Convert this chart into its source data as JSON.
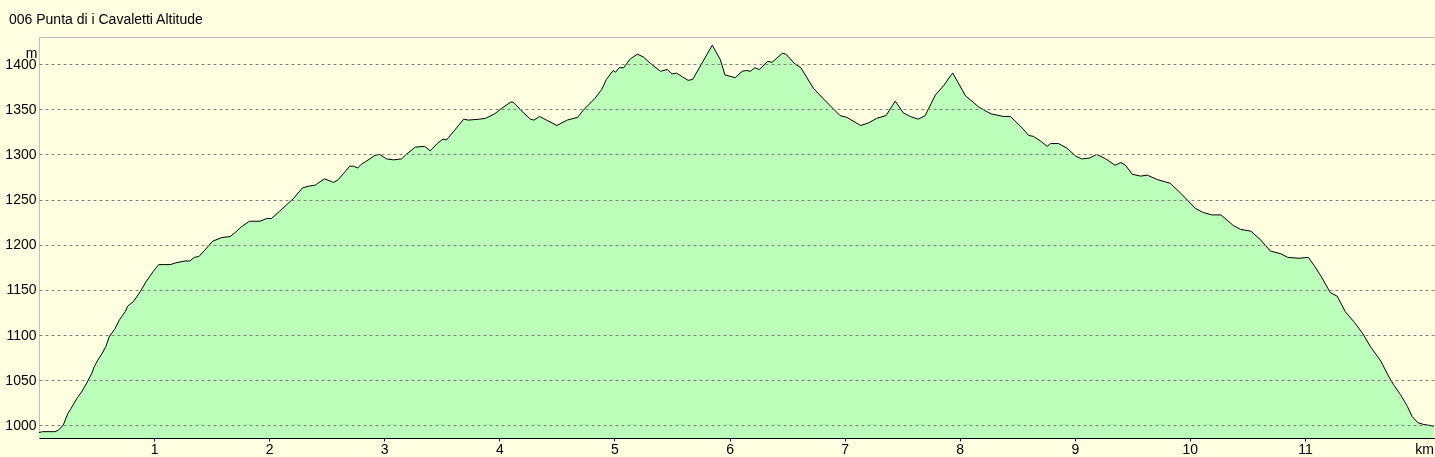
{
  "chart_data": {
    "type": "area",
    "title": "006 Punta di i Cavaletti Altitude",
    "xlabel": "km",
    "ylabel": "m",
    "x": [
      0.0,
      0.03,
      0.14,
      0.17,
      0.21,
      0.25,
      0.28,
      0.33,
      0.37,
      0.42,
      0.46,
      0.48,
      0.51,
      0.55,
      0.58,
      0.61,
      0.66,
      0.7,
      0.75,
      0.77,
      0.82,
      0.88,
      0.93,
      0.99,
      1.04,
      1.08,
      1.14,
      1.19,
      1.27,
      1.31,
      1.35,
      1.39,
      1.44,
      1.51,
      1.59,
      1.66,
      1.7,
      1.76,
      1.83,
      1.92,
      1.98,
      2.02,
      2.09,
      2.15,
      2.21,
      2.29,
      2.35,
      2.4,
      2.48,
      2.56,
      2.6,
      2.66,
      2.7,
      2.73,
      2.77,
      2.8,
      2.85,
      2.92,
      2.96,
      3.02,
      3.08,
      3.15,
      3.19,
      3.27,
      3.35,
      3.4,
      3.46,
      3.51,
      3.54,
      3.6,
      3.69,
      3.73,
      3.83,
      3.88,
      3.96,
      4.02,
      4.1,
      4.12,
      4.21,
      4.27,
      4.3,
      4.35,
      4.41,
      4.5,
      4.59,
      4.68,
      4.73,
      4.83,
      4.89,
      4.93,
      4.99,
      5.01,
      5.04,
      5.08,
      5.14,
      5.2,
      5.25,
      5.32,
      5.4,
      5.46,
      5.5,
      5.54,
      5.59,
      5.64,
      5.68,
      5.77,
      5.85,
      5.92,
      5.96,
      6.05,
      6.11,
      6.15,
      6.18,
      6.22,
      6.26,
      6.33,
      6.37,
      6.46,
      6.49,
      6.57,
      6.62,
      6.73,
      6.82,
      6.89,
      6.96,
      7.02,
      7.14,
      7.21,
      7.28,
      7.36,
      7.44,
      7.51,
      7.57,
      7.64,
      7.7,
      7.79,
      7.86,
      7.92,
      7.94,
      8.05,
      8.17,
      8.27,
      8.38,
      8.44,
      8.53,
      8.6,
      8.64,
      8.7,
      8.76,
      8.79,
      8.86,
      8.93,
      9.01,
      9.06,
      9.13,
      9.19,
      9.27,
      9.35,
      9.4,
      9.44,
      9.5,
      9.57,
      9.63,
      9.72,
      9.83,
      9.92,
      10.05,
      10.11,
      10.19,
      10.27,
      10.38,
      10.44,
      10.53,
      10.61,
      10.7,
      10.79,
      10.85,
      10.95,
      11.03,
      11.08,
      11.14,
      11.22,
      11.28,
      11.35,
      11.43,
      11.5,
      11.57,
      11.66,
      11.72,
      11.77,
      11.83,
      11.89,
      11.93,
      11.98,
      12.03,
      12.08,
      12.12
    ],
    "series": [
      {
        "color": "#bbffbb",
        "values": [
          992,
          993,
          993,
          995,
          1000,
          1013,
          1019,
          1030,
          1037,
          1048,
          1058,
          1065,
          1072,
          1080,
          1087,
          1098,
          1107,
          1117,
          1126,
          1132,
          1137,
          1148,
          1159,
          1170,
          1178,
          1178,
          1178,
          1180,
          1182,
          1182,
          1186,
          1187,
          1194,
          1204,
          1208,
          1209,
          1213,
          1220,
          1226,
          1226,
          1229,
          1229,
          1237,
          1244,
          1251,
          1263,
          1265,
          1266,
          1273,
          1269,
          1272,
          1281,
          1287,
          1287,
          1285,
          1289,
          1293,
          1299,
          1300,
          1295,
          1294,
          1295,
          1300,
          1308,
          1309,
          1304,
          1312,
          1317,
          1316,
          1325,
          1339,
          1338,
          1339,
          1340,
          1345,
          1351,
          1358,
          1358,
          1346,
          1339,
          1338,
          1342,
          1338,
          1332,
          1338,
          1341,
          1349,
          1362,
          1372,
          1383,
          1393,
          1391,
          1396,
          1396,
          1406,
          1411,
          1408,
          1400,
          1392,
          1394,
          1389,
          1390,
          1386,
          1382,
          1383,
          1403,
          1421,
          1405,
          1388,
          1385,
          1392,
          1393,
          1392,
          1396,
          1394,
          1403,
          1402,
          1412,
          1411,
          1400,
          1396,
          1373,
          1361,
          1352,
          1343,
          1341,
          1332,
          1335,
          1340,
          1343,
          1359,
          1346,
          1342,
          1339,
          1343,
          1366,
          1376,
          1387,
          1390,
          1365,
          1352,
          1345,
          1342,
          1342,
          1331,
          1321,
          1320,
          1315,
          1309,
          1312,
          1312,
          1307,
          1298,
          1295,
          1296,
          1300,
          1295,
          1288,
          1291,
          1288,
          1278,
          1276,
          1277,
          1272,
          1268,
          1257,
          1240,
          1236,
          1233,
          1233,
          1221,
          1217,
          1215,
          1206,
          1193,
          1190,
          1186,
          1185,
          1186,
          1177,
          1165,
          1147,
          1143,
          1126,
          1114,
          1102,
          1087,
          1071,
          1056,
          1045,
          1034,
          1021,
          1010,
          1003,
          1001,
          1000,
          999
        ]
      }
    ],
    "xlim": [
      0,
      12.13
    ],
    "ylim": [
      986,
      1430
    ],
    "xticks": [
      1,
      2,
      3,
      4,
      5,
      6,
      7,
      8,
      9,
      10,
      11
    ],
    "yticks": [
      1000,
      1050,
      1100,
      1150,
      1200,
      1250,
      1300,
      1350,
      1400
    ],
    "grid": "y"
  }
}
